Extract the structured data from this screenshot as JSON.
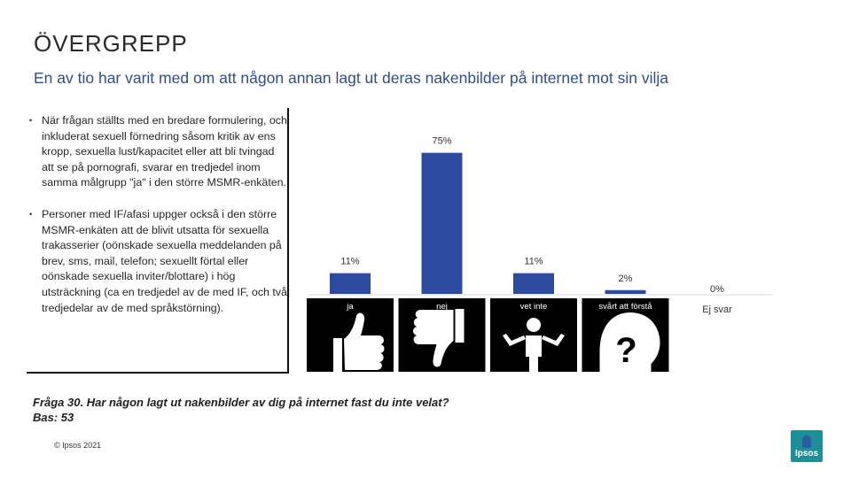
{
  "header": {
    "title": "ÖVERGREPP",
    "subtitle": "En av tio har varit med om att någon annan lagt ut deras nakenbilder på internet mot sin vilja"
  },
  "bullets": [
    "När frågan ställts med en bredare formulering, och inkluderat sexuell förnedring såsom kritik av ens kropp, sexuella lust/kapacitet eller att bli tvingad att se på pornografi, svarar en tredjedel inom samma målgrupp \"ja\" i den större MSMR-enkäten.",
    "Personer med IF/afasi uppger också i den större MSMR-enkäten att de blivit utsatta för sexuella trakasserier (oönskade sexuella meddelanden på brev, sms, mail, telefon; sexuellt förtal eller oönskade sexuella inviter/blottare) i hög utsträckning (ca en tredjedel av de med IF, och två tredjedelar av de med språkstörning)."
  ],
  "chart_data": {
    "type": "bar",
    "title": "",
    "categories": [
      "ja",
      "nej",
      "vet inte",
      "svårt att förstå",
      "Ej svar"
    ],
    "values": [
      11,
      75,
      11,
      2,
      0
    ],
    "value_labels": [
      "11%",
      "75%",
      "11%",
      "2%",
      "0%"
    ],
    "ylim": [
      0,
      80
    ],
    "bar_color": "#2b4aa0",
    "xlabel": "",
    "ylabel": ""
  },
  "icons": {
    "ja": "thumbs-up-icon",
    "nej": "thumbs-down-icon",
    "vet_inte": "shrug-person-icon",
    "svart_att_forsta": "question-head-icon"
  },
  "footnote": {
    "question": "Fråga 30. Har någon lagt ut nakenbilder av dig på internet fast du inte velat?",
    "base": "Bas: 53"
  },
  "copyright": "© Ipsos 2021",
  "logo": {
    "text": "Ipsos"
  }
}
